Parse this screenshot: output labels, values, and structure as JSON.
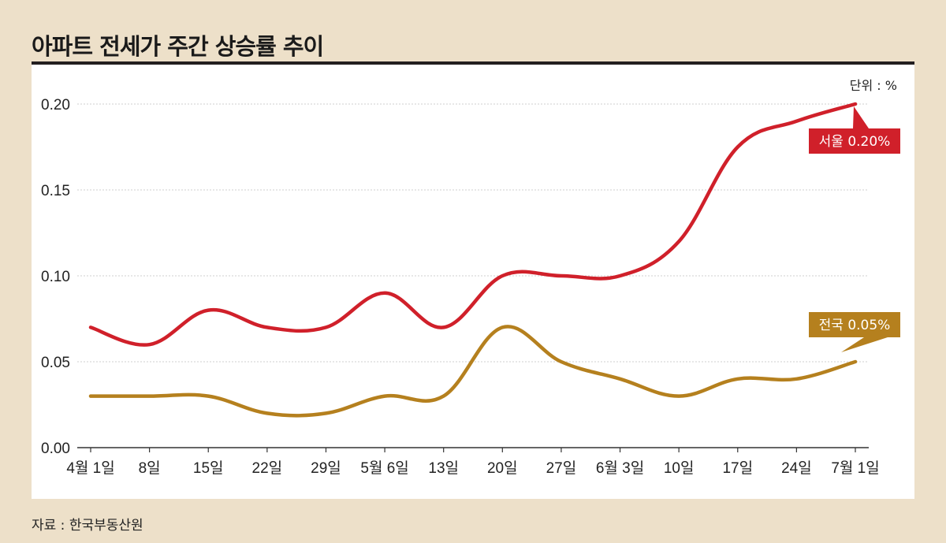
{
  "title": "아파트 전세가 주간 상승률 추이",
  "source": "자료 : 한국부동산원",
  "chart_data": {
    "type": "line",
    "unit_label": "단위 : %",
    "categories": [
      "4월 1일",
      "8일",
      "15일",
      "22일",
      "29일",
      "5월 6일",
      "13일",
      "20일",
      "27일",
      "6월 3일",
      "10일",
      "17일",
      "24일",
      "7월 1일"
    ],
    "ylim": [
      0,
      0.2
    ],
    "yticks": [
      "0.00",
      "0.05",
      "0.10",
      "0.15",
      "0.20"
    ],
    "grid": true,
    "series": [
      {
        "name": "서울",
        "label": "서울 0.20%",
        "color": "#d0202a",
        "values": [
          0.07,
          0.06,
          0.08,
          0.07,
          0.07,
          0.09,
          0.07,
          0.1,
          0.1,
          0.1,
          0.12,
          0.175,
          0.19,
          0.2
        ]
      },
      {
        "name": "전국",
        "label": "전국 0.05%",
        "color": "#b5801e",
        "values": [
          0.03,
          0.03,
          0.03,
          0.02,
          0.02,
          0.03,
          0.03,
          0.07,
          0.05,
          0.04,
          0.03,
          0.04,
          0.04,
          0.05
        ]
      }
    ]
  }
}
